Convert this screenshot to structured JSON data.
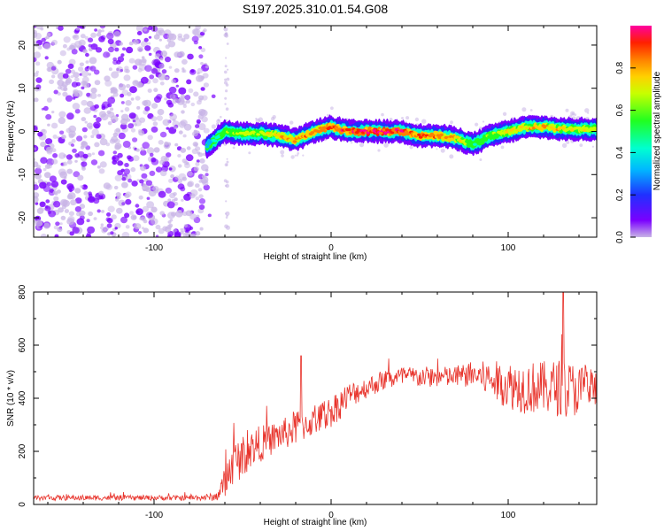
{
  "title": "S197.2025.310.01.54.G08",
  "chart_data": [
    {
      "type": "heatmap",
      "title": "S197.2025.310.01.54.G08",
      "xlabel": "Height of straight line (km)",
      "ylabel": "Frequency (Hz)",
      "xlim": [
        -168,
        150
      ],
      "ylim": [
        -24.5,
        24.5
      ],
      "xticks": [
        -100,
        0,
        100
      ],
      "yticks": [
        -20,
        -10,
        0,
        10,
        20
      ],
      "colorbar": {
        "label": "Normalized spectral amplitude",
        "range": [
          0,
          1
        ],
        "ticks": [
          0.0,
          0.2,
          0.4,
          0.6,
          0.8
        ],
        "colors": [
          "#c8b4e6",
          "#7a00ff",
          "#2030ff",
          "#00b8ff",
          "#00ffd0",
          "#20ff20",
          "#c8ff00",
          "#ffd000",
          "#ff8000",
          "#ff2000",
          "#ff00a0"
        ]
      },
      "noise_region_x": [
        -168,
        -70
      ],
      "gap_line_x": -59,
      "ridge": {
        "x": [
          -70,
          -60,
          -50,
          -40,
          -30,
          -20,
          -10,
          0,
          10,
          20,
          30,
          40,
          50,
          60,
          70,
          80,
          90,
          100,
          110,
          120,
          130,
          140,
          150
        ],
        "freq": [
          -3.5,
          0,
          -0.5,
          -0.5,
          -1,
          -2,
          0,
          1,
          0,
          0,
          0,
          0,
          -1,
          -1,
          -1.5,
          -3,
          -1,
          0,
          1,
          1,
          0.5,
          0.5,
          0.5
        ],
        "amplitude": [
          0.3,
          0.5,
          0.6,
          0.6,
          0.7,
          0.75,
          0.8,
          0.85,
          0.9,
          0.95,
          0.95,
          0.9,
          0.8,
          0.8,
          0.75,
          0.5,
          0.55,
          0.65,
          0.7,
          0.75,
          0.7,
          0.65,
          0.6
        ]
      }
    },
    {
      "type": "line",
      "xlabel": "Height of straight line (km)",
      "ylabel": "SNR (10 * v/v)",
      "xlim": [
        -168,
        150
      ],
      "ylim": [
        0,
        800
      ],
      "xticks": [
        -100,
        0,
        100
      ],
      "yticks": [
        0,
        200,
        400,
        600,
        800
      ],
      "color": "#e8322a",
      "series": [
        {
          "name": "SNR",
          "x": [
            -168,
            -140,
            -110,
            -80,
            -65,
            -60,
            -55,
            -50,
            -45,
            -40,
            -35,
            -30,
            -25,
            -20,
            -15,
            -10,
            -5,
            0,
            5,
            10,
            20,
            30,
            40,
            50,
            60,
            70,
            80,
            90,
            100,
            110,
            120,
            130,
            140,
            150
          ],
          "y": [
            25,
            25,
            25,
            25,
            28,
            80,
            160,
            180,
            210,
            230,
            240,
            260,
            270,
            290,
            300,
            310,
            330,
            350,
            380,
            410,
            440,
            470,
            480,
            480,
            480,
            480,
            490,
            470,
            450,
            440,
            440,
            440,
            430,
            430
          ],
          "spread": [
            10,
            10,
            10,
            10,
            15,
            60,
            80,
            80,
            70,
            70,
            60,
            60,
            60,
            70,
            60,
            50,
            60,
            60,
            60,
            50,
            40,
            40,
            40,
            40,
            40,
            40,
            50,
            70,
            90,
            100,
            100,
            110,
            100,
            90
          ]
        }
      ],
      "annotations": [
        {
          "x": 131,
          "y": 810,
          "note": "spike"
        },
        {
          "x": -17,
          "y": 560,
          "note": "spike"
        }
      ]
    }
  ]
}
